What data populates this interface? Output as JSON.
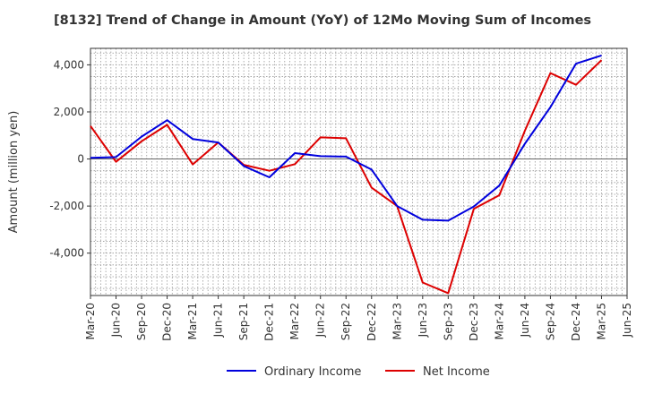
{
  "chart_data": {
    "type": "line",
    "title": "[8132]  Trend of Change in Amount (YoY) of 12Mo Moving Sum of Incomes",
    "xlabel": "",
    "ylabel": "Amount (million yen)",
    "ylim": [
      -5800,
      4700
    ],
    "yticks": [
      4000,
      2000,
      0,
      -2000,
      -4000
    ],
    "ytick_labels": [
      "4,000",
      "2,000",
      "0",
      "-2,000",
      "-4,000"
    ],
    "x_tick_labels": [
      "Mar-20",
      "Jun-20",
      "Sep-20",
      "Dec-20",
      "Mar-21",
      "Jun-21",
      "Sep-21",
      "Dec-21",
      "Mar-22",
      "Jun-22",
      "Sep-22",
      "Dec-22",
      "Mar-23",
      "Jun-23",
      "Sep-23",
      "Dec-23",
      "Mar-24",
      "Jun-24",
      "Sep-24",
      "Dec-24",
      "Mar-25",
      "Jun-25"
    ],
    "grid": true,
    "legend_position": "bottom",
    "series": [
      {
        "name": "Ordinary Income",
        "color": "#0000dd",
        "values": [
          50,
          80,
          950,
          1650,
          850,
          700,
          -300,
          -780,
          250,
          120,
          100,
          -450,
          -2000,
          -2580,
          -2620,
          -2020,
          -1130,
          650,
          2200,
          4050,
          4400
        ]
      },
      {
        "name": "Net Income",
        "color": "#dd0000",
        "values": [
          1400,
          -120,
          750,
          1450,
          -230,
          700,
          -250,
          -500,
          -220,
          920,
          880,
          -1220,
          -2000,
          -5250,
          -5700,
          -2120,
          -1540,
          1200,
          3650,
          3150,
          4200
        ]
      }
    ]
  }
}
